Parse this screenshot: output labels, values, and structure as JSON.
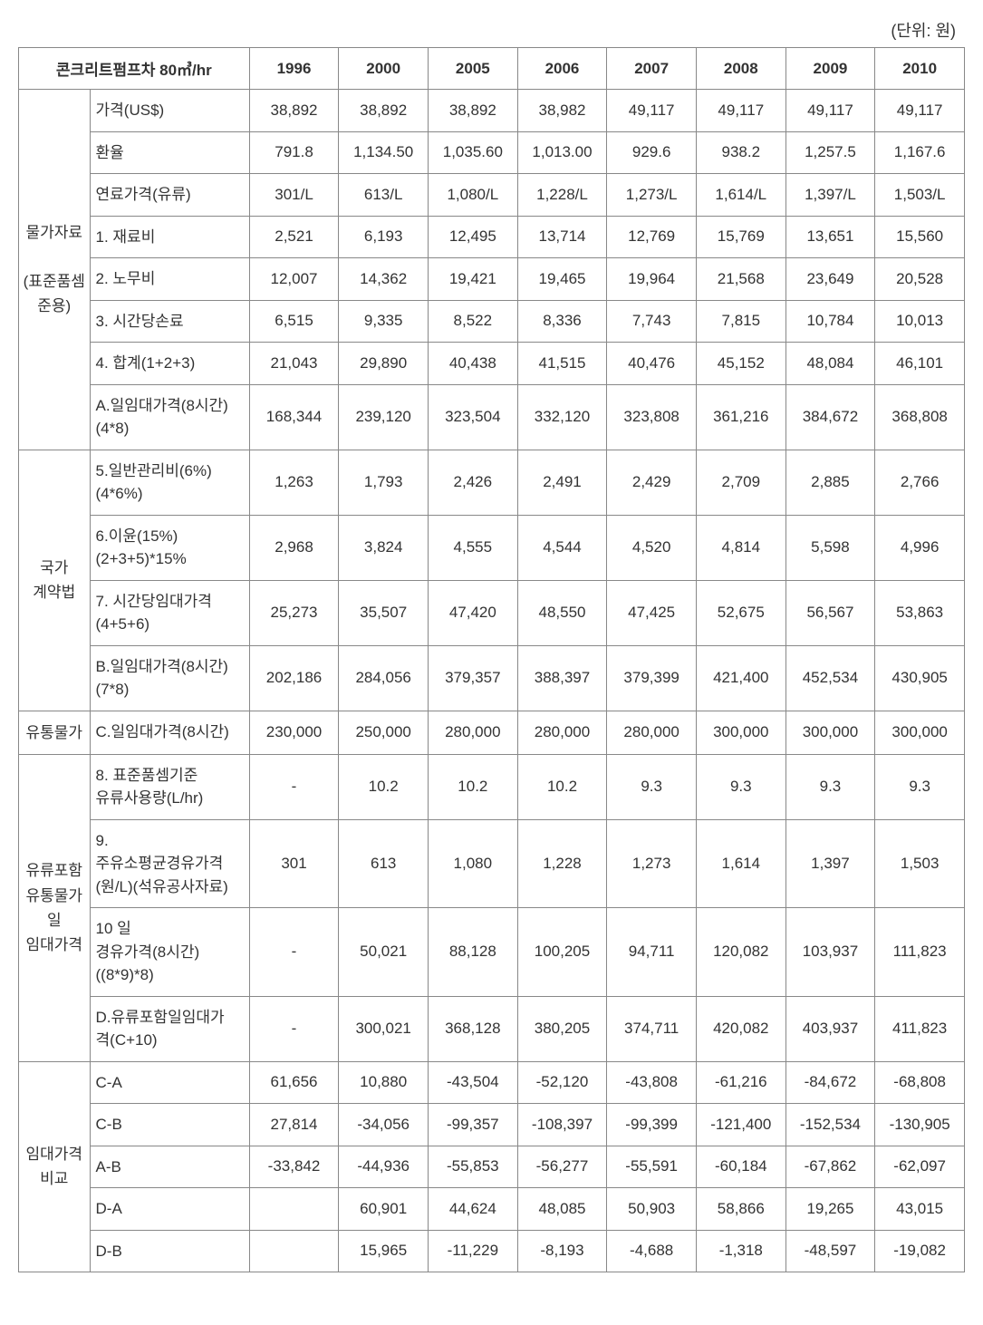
{
  "unit_note": "(단위: 원)",
  "title": "콘크리트펌프차 80㎥/hr",
  "years": [
    "1996",
    "2000",
    "2005",
    "2006",
    "2007",
    "2008",
    "2009",
    "2010"
  ],
  "sections": [
    {
      "cat": "물가자료\n\n(표준품셈\n준용)",
      "rows": [
        {
          "label": "가격(US$)",
          "vals": [
            "38,892",
            "38,892",
            "38,892",
            "38,982",
            "49,117",
            "49,117",
            "49,117",
            "49,117"
          ]
        },
        {
          "label": "환율",
          "vals": [
            "791.8",
            "1,134.50",
            "1,035.60",
            "1,013.00",
            "929.6",
            "938.2",
            "1,257.5",
            "1,167.6"
          ]
        },
        {
          "label": "연료가격(유류)",
          "vals": [
            "301/L",
            "613/L",
            "1,080/L",
            "1,228/L",
            "1,273/L",
            "1,614/L",
            "1,397/L",
            "1,503/L"
          ]
        },
        {
          "label": "1. 재료비",
          "vals": [
            "2,521",
            "6,193",
            "12,495",
            "13,714",
            "12,769",
            "15,769",
            "13,651",
            "15,560"
          ]
        },
        {
          "label": "2. 노무비",
          "vals": [
            "12,007",
            "14,362",
            "19,421",
            "19,465",
            "19,964",
            "21,568",
            "23,649",
            "20,528"
          ]
        },
        {
          "label": "3. 시간당손료",
          "vals": [
            "6,515",
            "9,335",
            "8,522",
            "8,336",
            "7,743",
            "7,815",
            "10,784",
            "10,013"
          ]
        },
        {
          "label": "4. 합계(1+2+3)",
          "vals": [
            "21,043",
            "29,890",
            "40,438",
            "41,515",
            "40,476",
            "45,152",
            "48,084",
            "46,101"
          ]
        },
        {
          "label": "A.일임대가격(8시간)\n(4*8)",
          "vals": [
            "168,344",
            "239,120",
            "323,504",
            "332,120",
            "323,808",
            "361,216",
            "384,672",
            "368,808"
          ]
        }
      ]
    },
    {
      "cat": "국가\n계약법",
      "rows": [
        {
          "label": "5.일반관리비(6%)\n(4*6%)",
          "vals": [
            "1,263",
            "1,793",
            "2,426",
            "2,491",
            "2,429",
            "2,709",
            "2,885",
            "2,766"
          ]
        },
        {
          "label": "6.이윤(15%)\n(2+3+5)*15%",
          "vals": [
            "2,968",
            "3,824",
            "4,555",
            "4,544",
            "4,520",
            "4,814",
            "5,598",
            "4,996"
          ]
        },
        {
          "label": "7. 시간당임대가격\n(4+5+6)",
          "vals": [
            "25,273",
            "35,507",
            "47,420",
            "48,550",
            "47,425",
            "52,675",
            "56,567",
            "53,863"
          ]
        },
        {
          "label": "B.일임대가격(8시간)\n(7*8)",
          "vals": [
            "202,186",
            "284,056",
            "379,357",
            "388,397",
            "379,399",
            "421,400",
            "452,534",
            "430,905"
          ]
        }
      ]
    },
    {
      "cat": "유통물가",
      "rows": [
        {
          "label": "C.일임대가격(8시간)",
          "vals": [
            "230,000",
            "250,000",
            "280,000",
            "280,000",
            "280,000",
            "300,000",
            "300,000",
            "300,000"
          ]
        }
      ]
    },
    {
      "cat": "유류포함\n유통물가\n일\n임대가격",
      "rows": [
        {
          "label": "8. 표준품셈기준\n유류사용량(L/hr)",
          "vals": [
            "-",
            "10.2",
            "10.2",
            "10.2",
            "9.3",
            "9.3",
            "9.3",
            "9.3"
          ]
        },
        {
          "label": "9.\n주유소평균경유가격\n(원/L)(석유공사자료)",
          "vals": [
            "301",
            "613",
            "1,080",
            "1,228",
            "1,273",
            "1,614",
            "1,397",
            "1,503"
          ]
        },
        {
          "label": "10 일\n경유가격(8시간)\n((8*9)*8)",
          "vals": [
            "-",
            "50,021",
            "88,128",
            "100,205",
            "94,711",
            "120,082",
            "103,937",
            "111,823"
          ]
        },
        {
          "label": "D.유류포함일임대가\n격(C+10)",
          "vals": [
            "-",
            "300,021",
            "368,128",
            "380,205",
            "374,711",
            "420,082",
            "403,937",
            "411,823"
          ]
        }
      ]
    },
    {
      "cat": "임대가격\n비교",
      "rows": [
        {
          "label": "C-A",
          "vals": [
            "61,656",
            "10,880",
            "-43,504",
            "-52,120",
            "-43,808",
            "-61,216",
            "-84,672",
            "-68,808"
          ]
        },
        {
          "label": "C-B",
          "vals": [
            "27,814",
            "-34,056",
            "-99,357",
            "-108,397",
            "-99,399",
            "-121,400",
            "-152,534",
            "-130,905"
          ]
        },
        {
          "label": "A-B",
          "vals": [
            "-33,842",
            "-44,936",
            "-55,853",
            "-56,277",
            "-55,591",
            "-60,184",
            "-67,862",
            "-62,097"
          ]
        },
        {
          "label": "D-A",
          "vals": [
            "",
            "60,901",
            "44,624",
            "48,085",
            "50,903",
            "58,866",
            "19,265",
            "43,015"
          ]
        },
        {
          "label": "D-B",
          "vals": [
            "",
            "15,965",
            "-11,229",
            "-8,193",
            "-4,688",
            "-1,318",
            "-48,597",
            "-19,082"
          ]
        }
      ]
    }
  ]
}
